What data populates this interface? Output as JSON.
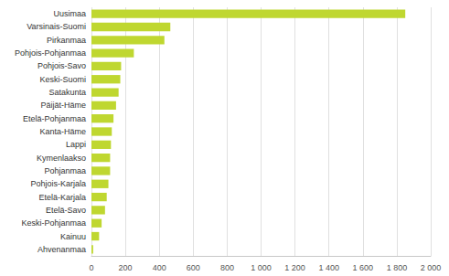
{
  "chart_data": {
    "type": "bar",
    "orientation": "horizontal",
    "categories": [
      "Uusimaa",
      "Varsinais-Suomi",
      "Pirkanmaa",
      "Pohjois-Pohjanmaa",
      "Pohjois-Savo",
      "Keski-Suomi",
      "Satakunta",
      "Päijät-Häme",
      "Etelä-Pohjanmaa",
      "Kanta-Häme",
      "Lappi",
      "Kymenlaakso",
      "Pohjanmaa",
      "Pohjois-Karjala",
      "Etelä-Karjala",
      "Etelä-Savo",
      "Keski-Pohjanmaa",
      "Kainuu",
      "Ahvenanmaa"
    ],
    "values": [
      1850,
      465,
      430,
      250,
      175,
      170,
      160,
      145,
      130,
      120,
      115,
      110,
      110,
      100,
      90,
      80,
      60,
      45,
      10
    ],
    "color": "#bfd730",
    "xlim": [
      0,
      2000
    ],
    "xticks": [
      0,
      200,
      400,
      600,
      800,
      {
        "value": 1000,
        "label": "1 000"
      },
      {
        "value": 1200,
        "label": "1 200"
      },
      {
        "value": 1400,
        "label": "1 400"
      },
      {
        "value": 1600,
        "label": "1 600"
      },
      {
        "value": 1800,
        "label": "1 800"
      },
      {
        "value": 2000,
        "label": "2 000"
      }
    ],
    "grid": true
  }
}
